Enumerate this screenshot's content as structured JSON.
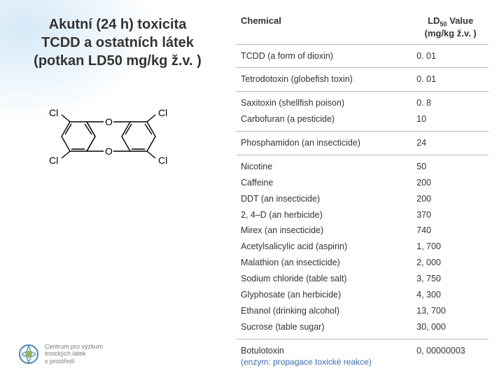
{
  "title_line1": "Akutní (24 h) toxicita",
  "title_line2": "TCDD a ostatních látek",
  "title_line3": "(potkan LD50 mg/kg ž.v. )",
  "molecule": {
    "labels": {
      "cl": "Cl",
      "o": "O"
    },
    "colors": {
      "bond": "#000000",
      "text": "#000000"
    }
  },
  "footer": {
    "line1": "Centrum pro výzkum",
    "line2": "toxických látek",
    "line3": "v prostředí"
  },
  "table": {
    "header_chemical": "Chemical",
    "header_value_line1": "LD",
    "header_value_sub": "50",
    "header_value_line1b": " Value",
    "header_value_line2": "(mg/kg ž.v. )",
    "sections": [
      [
        {
          "name": "TCDD (a form of dioxin)",
          "value": "0. 01"
        }
      ],
      [
        {
          "name": "Tetrodotoxin (globefish toxin)",
          "value": "0. 01"
        }
      ],
      [
        {
          "name": "Saxitoxin (shellfish poison)",
          "value": "0. 8"
        },
        {
          "name": "Carbofuran (a pesticide)",
          "value": "10"
        }
      ],
      [
        {
          "name": "Phosphamidon (an insecticide)",
          "value": "24"
        }
      ],
      [
        {
          "name": "Nicotine",
          "value": "50"
        },
        {
          "name": "Caffeine",
          "value": "200"
        },
        {
          "name": "DDT (an insecticide)",
          "value": "200"
        },
        {
          "name": "2, 4–D (an herbicide)",
          "value": "370"
        },
        {
          "name": "Mirex (an insecticide)",
          "value": "740"
        },
        {
          "name": "Acetylsalicylic acid (aspirin)",
          "value": "1, 700"
        },
        {
          "name": "Malathion (an insecticide)",
          "value": "2, 000"
        },
        {
          "name": "Sodium chloride (table salt)",
          "value": "3, 750"
        },
        {
          "name": "Glyphosate (an herbicide)",
          "value": "4, 300"
        },
        {
          "name": "Ethanol (drinking alcohol)",
          "value": "13, 700"
        },
        {
          "name": "Sucrose (table sugar)",
          "value": "30, 000"
        }
      ],
      [
        {
          "name": "Botulotoxin",
          "value": "0, 00000003",
          "note": "(enzym: propagace toxické reakce)"
        }
      ]
    ]
  },
  "colors": {
    "text": "#333333",
    "rule": "#b8b8b8",
    "note": "#3a6ea8",
    "footer_text": "#7a7a7a",
    "logo_ring": "#4a88b8",
    "logo_inner": "#8fb860"
  }
}
